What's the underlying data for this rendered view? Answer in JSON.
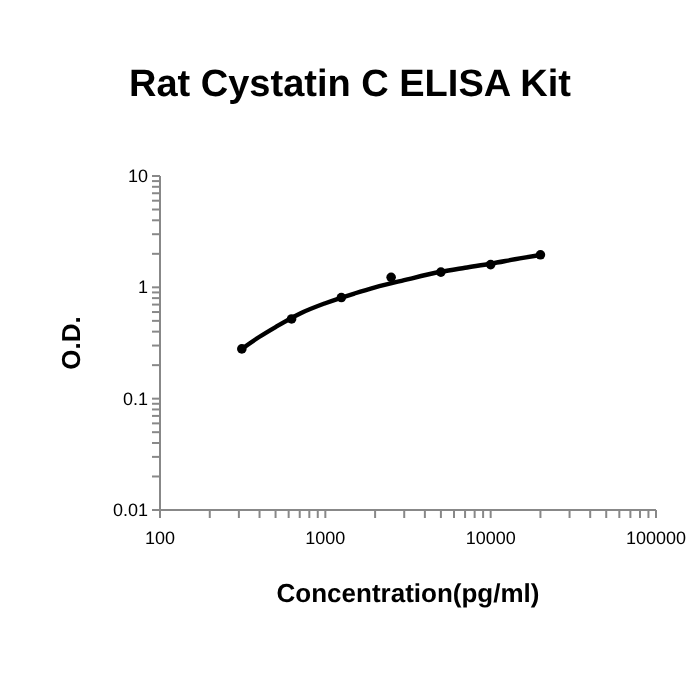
{
  "chart_data": {
    "type": "scatter",
    "title": "Rat Cystatin C ELISA Kit",
    "xlabel": "Concentration(pg/ml)",
    "ylabel": "O.D.",
    "log": "xy",
    "xlim": [
      100,
      100000
    ],
    "ylim": [
      0.01,
      10
    ],
    "xticks": [
      100,
      {
        "value": 200,
        "label": null
      },
      {
        "value": 300,
        "label": null
      },
      {
        "value": 400,
        "label": null
      },
      {
        "value": 500,
        "label": null
      },
      {
        "value": 600,
        "label": null
      },
      {
        "value": 700,
        "label": null
      },
      {
        "value": 800,
        "label": null
      },
      {
        "value": 900,
        "label": null
      },
      1000,
      {
        "value": 2000,
        "label": null
      },
      {
        "value": 3000,
        "label": null
      },
      {
        "value": 4000,
        "label": null
      },
      {
        "value": 5000,
        "label": null
      },
      {
        "value": 6000,
        "label": null
      },
      {
        "value": 7000,
        "label": null
      },
      {
        "value": 8000,
        "label": null
      },
      {
        "value": 9000,
        "label": null
      },
      10000,
      {
        "value": 20000,
        "label": null
      },
      {
        "value": 30000,
        "label": null
      },
      {
        "value": 40000,
        "label": null
      },
      {
        "value": 50000,
        "label": null
      },
      {
        "value": 60000,
        "label": null
      },
      {
        "value": 70000,
        "label": null
      },
      {
        "value": 80000,
        "label": null
      },
      {
        "value": 90000,
        "label": null
      },
      100000
    ],
    "yticks": [
      0.01,
      {
        "value": 0.02,
        "label": null
      },
      {
        "value": 0.03,
        "label": null
      },
      {
        "value": 0.04,
        "label": null
      },
      {
        "value": 0.05,
        "label": null
      },
      {
        "value": 0.06,
        "label": null
      },
      {
        "value": 0.07,
        "label": null
      },
      {
        "value": 0.08,
        "label": null
      },
      {
        "value": 0.09,
        "label": null
      },
      0.1,
      {
        "value": 0.2,
        "label": null
      },
      {
        "value": 0.3,
        "label": null
      },
      {
        "value": 0.4,
        "label": null
      },
      {
        "value": 0.5,
        "label": null
      },
      {
        "value": 0.6,
        "label": null
      },
      {
        "value": 0.7,
        "label": null
      },
      {
        "value": 0.8,
        "label": null
      },
      {
        "value": 0.9,
        "label": null
      },
      1,
      {
        "value": 2,
        "label": null
      },
      {
        "value": 3,
        "label": null
      },
      {
        "value": 4,
        "label": null
      },
      {
        "value": 5,
        "label": null
      },
      {
        "value": 6,
        "label": null
      },
      {
        "value": 7,
        "label": null
      },
      {
        "value": 8,
        "label": null
      },
      {
        "value": 9,
        "label": null
      },
      10
    ],
    "grid": false,
    "series": [
      {
        "color": "#000000",
        "marker": "circle",
        "x": [
          312.5,
          625,
          1250,
          2500,
          5000,
          10000,
          20000
        ],
        "values": [
          0.28,
          0.52,
          0.81,
          1.23,
          1.37,
          1.6,
          1.96
        ]
      },
      {
        "type": "line",
        "color": "#000000",
        "marker": "none",
        "line_style": "solid",
        "x": [
          312.5,
          400,
          500,
          700,
          1000,
          1500,
          2000,
          3000,
          5000,
          7000,
          10000,
          15000,
          20000
        ],
        "values": [
          0.28,
          0.36,
          0.44,
          0.58,
          0.72,
          0.88,
          1.0,
          1.16,
          1.38,
          1.5,
          1.63,
          1.82,
          1.95
        ]
      }
    ]
  }
}
